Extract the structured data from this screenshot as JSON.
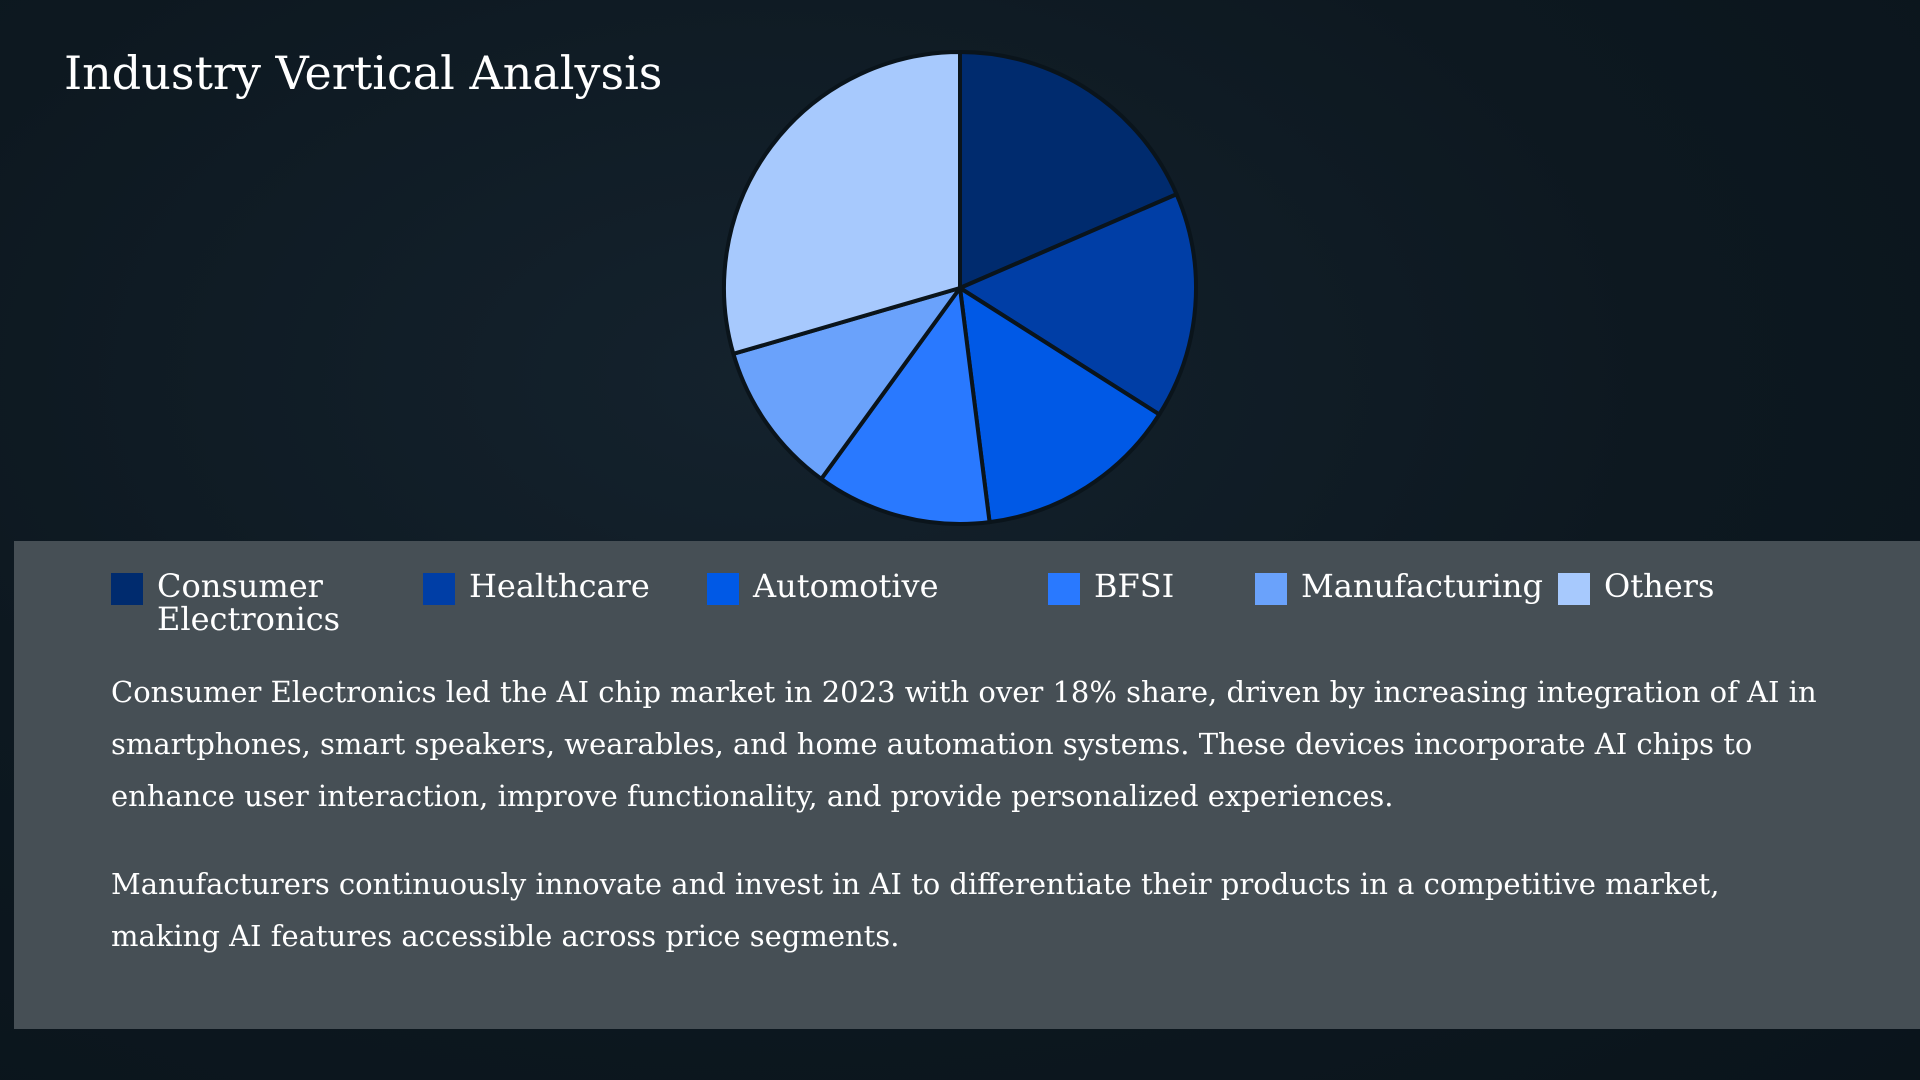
{
  "title": "Industry Vertical Analysis",
  "chart_data": {
    "type": "pie",
    "title": "Industry Vertical Analysis",
    "categories": [
      "Consumer Electronics",
      "Healthcare",
      "Automotive",
      "BFSI",
      "Manufacturing",
      "Others"
    ],
    "values": [
      18.5,
      15.5,
      14,
      12,
      10.5,
      29.5
    ],
    "colors": [
      "#002b6e",
      "#003ea6",
      "#0059e6",
      "#2979ff",
      "#6aa2fb",
      "#a7c9fd"
    ],
    "legend_position": "bottom"
  },
  "legend": [
    {
      "label": "Consumer Electronics",
      "color": "#002b6e"
    },
    {
      "label": "Healthcare",
      "color": "#003ea6"
    },
    {
      "label": "Automotive",
      "color": "#0059e6"
    },
    {
      "label": "BFSI",
      "color": "#2979ff"
    },
    {
      "label": "Manufacturing",
      "color": "#6aa2fb"
    },
    {
      "label": "Others",
      "color": "#a7c9fd"
    }
  ],
  "paragraphs": [
    "Consumer Electronics led the AI chip market in 2023 with over 18% share, driven by increasing integration of AI in smartphones, smart speakers, wearables, and home automation systems. These devices incorporate AI chips to enhance user interaction, improve functionality, and provide personalized experiences.",
    "Manufacturers continuously innovate and invest in AI to differentiate their products in a competitive market, making AI features accessible across price segments."
  ]
}
